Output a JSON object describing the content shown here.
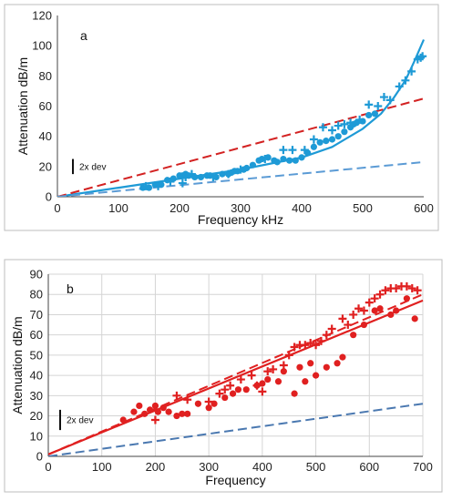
{
  "chart_data": [
    {
      "type": "scatter",
      "panel_label": "a",
      "xlabel": "Frequency  kHz",
      "ylabel": "Attenuation  dB/m",
      "xlim": [
        0,
        600
      ],
      "ylim": [
        0,
        120
      ],
      "x_ticks": [
        0,
        100,
        200,
        300,
        400,
        500,
        600
      ],
      "y_ticks": [
        0,
        20,
        40,
        60,
        80,
        100,
        120
      ],
      "grid": false,
      "dev_bar_label": "2x dev",
      "dev_bar_span": [
        15,
        25
      ],
      "series": [
        {
          "kind": "dots",
          "color": "#1E9AD6",
          "points": [
            [
              140,
              6
            ],
            [
              150,
              6
            ],
            [
              160,
              8
            ],
            [
              170,
              8
            ],
            [
              180,
              11
            ],
            [
              190,
              12
            ],
            [
              200,
              14
            ],
            [
              205,
              14
            ],
            [
              210,
              15
            ],
            [
              215,
              14
            ],
            [
              225,
              13
            ],
            [
              235,
              13
            ],
            [
              245,
              14
            ],
            [
              250,
              14
            ],
            [
              260,
              13
            ],
            [
              270,
              15
            ],
            [
              280,
              15
            ],
            [
              285,
              16
            ],
            [
              290,
              17
            ],
            [
              295,
              17
            ],
            [
              305,
              18
            ],
            [
              310,
              19
            ],
            [
              320,
              21
            ],
            [
              330,
              24
            ],
            [
              335,
              25
            ],
            [
              345,
              26
            ],
            [
              355,
              24
            ],
            [
              360,
              23
            ],
            [
              370,
              25
            ],
            [
              380,
              24
            ],
            [
              390,
              24
            ],
            [
              400,
              26
            ],
            [
              410,
              29
            ],
            [
              420,
              33
            ],
            [
              430,
              36
            ],
            [
              440,
              37
            ],
            [
              450,
              38
            ],
            [
              460,
              40
            ],
            [
              470,
              43
            ],
            [
              480,
              46
            ],
            [
              485,
              48
            ],
            [
              490,
              49
            ],
            [
              500,
              50
            ],
            [
              510,
              54
            ],
            [
              520,
              55
            ]
          ]
        },
        {
          "kind": "crosses",
          "color": "#1E9AD6",
          "points": [
            [
              145,
              7
            ],
            [
              165,
              7
            ],
            [
              185,
              10
            ],
            [
              205,
              9
            ],
            [
              210,
              13
            ],
            [
              220,
              15
            ],
            [
              255,
              13
            ],
            [
              280,
              15
            ],
            [
              300,
              18
            ],
            [
              340,
              25
            ],
            [
              370,
              31
            ],
            [
              385,
              31
            ],
            [
              405,
              31
            ],
            [
              420,
              38
            ],
            [
              435,
              46
            ],
            [
              450,
              44
            ],
            [
              460,
              47
            ],
            [
              470,
              48
            ],
            [
              480,
              49
            ],
            [
              495,
              51
            ],
            [
              510,
              61
            ],
            [
              525,
              60
            ],
            [
              535,
              66
            ],
            [
              545,
              64
            ],
            [
              560,
              73
            ],
            [
              570,
              77
            ],
            [
              580,
              83
            ],
            [
              590,
              91
            ],
            [
              595,
              92
            ],
            [
              598,
              93
            ]
          ]
        },
        {
          "kind": "line",
          "style": "solid",
          "color": "#1E9AD6",
          "points": [
            [
              0,
              0
            ],
            [
              100,
              6
            ],
            [
              200,
              12
            ],
            [
              300,
              18
            ],
            [
              350,
              22
            ],
            [
              400,
              26
            ],
            [
              450,
              33
            ],
            [
              500,
              45
            ],
            [
              530,
              55
            ],
            [
              550,
              65
            ],
            [
              570,
              77
            ],
            [
              585,
              90
            ],
            [
              600,
              104
            ]
          ]
        },
        {
          "kind": "line",
          "style": "dashed",
          "color": "#D32222",
          "points": [
            [
              0,
              0
            ],
            [
              600,
              65
            ]
          ]
        },
        {
          "kind": "line",
          "style": "dashed",
          "color": "#5B9BD5",
          "points": [
            [
              0,
              0
            ],
            [
              600,
              23
            ]
          ]
        }
      ]
    },
    {
      "type": "scatter",
      "panel_label": "b",
      "xlabel": "Frequency",
      "ylabel": "Attenuation  dB/m",
      "xlim": [
        0,
        700
      ],
      "ylim": [
        0,
        90
      ],
      "x_ticks": [
        0,
        100,
        200,
        300,
        400,
        500,
        600,
        700
      ],
      "y_ticks": [
        0,
        10,
        20,
        30,
        40,
        50,
        60,
        70,
        80,
        90
      ],
      "grid": true,
      "dev_bar_label": "2x dev",
      "dev_bar_span": [
        13,
        23
      ],
      "series": [
        {
          "kind": "dots",
          "color": "#E02020",
          "points": [
            [
              140,
              18
            ],
            [
              160,
              22
            ],
            [
              170,
              25
            ],
            [
              180,
              21
            ],
            [
              190,
              23
            ],
            [
              200,
              25
            ],
            [
              205,
              22
            ],
            [
              215,
              24
            ],
            [
              225,
              22
            ],
            [
              240,
              20
            ],
            [
              250,
              21
            ],
            [
              260,
              21
            ],
            [
              280,
              26
            ],
            [
              300,
              24
            ],
            [
              310,
              26
            ],
            [
              330,
              29
            ],
            [
              345,
              31
            ],
            [
              355,
              33
            ],
            [
              370,
              33
            ],
            [
              390,
              35
            ],
            [
              400,
              36
            ],
            [
              410,
              38
            ],
            [
              430,
              37
            ],
            [
              440,
              42
            ],
            [
              460,
              31
            ],
            [
              470,
              44
            ],
            [
              480,
              37
            ],
            [
              490,
              46
            ],
            [
              500,
              40
            ],
            [
              520,
              44
            ],
            [
              540,
              46
            ],
            [
              550,
              49
            ],
            [
              570,
              60
            ],
            [
              590,
              65
            ],
            [
              610,
              72
            ],
            [
              620,
              73
            ],
            [
              640,
              70
            ],
            [
              650,
              72
            ],
            [
              670,
              78
            ],
            [
              685,
              68
            ]
          ]
        },
        {
          "kind": "crosses",
          "color": "#E02020",
          "points": [
            [
              200,
              18
            ],
            [
              240,
              30
            ],
            [
              260,
              28
            ],
            [
              300,
              27
            ],
            [
              320,
              31
            ],
            [
              330,
              33
            ],
            [
              340,
              35
            ],
            [
              360,
              38
            ],
            [
              380,
              40
            ],
            [
              390,
              35
            ],
            [
              400,
              32
            ],
            [
              410,
              42
            ],
            [
              420,
              43
            ],
            [
              440,
              45
            ],
            [
              450,
              50
            ],
            [
              460,
              54
            ],
            [
              470,
              55
            ],
            [
              480,
              55
            ],
            [
              490,
              56
            ],
            [
              500,
              55
            ],
            [
              510,
              57
            ],
            [
              520,
              60
            ],
            [
              530,
              63
            ],
            [
              550,
              68
            ],
            [
              560,
              65
            ],
            [
              570,
              70
            ],
            [
              580,
              73
            ],
            [
              590,
              72
            ],
            [
              600,
              76
            ],
            [
              610,
              78
            ],
            [
              620,
              80
            ],
            [
              630,
              82
            ],
            [
              640,
              83
            ],
            [
              650,
              83
            ],
            [
              660,
              84
            ],
            [
              670,
              84
            ],
            [
              680,
              83
            ],
            [
              690,
              82
            ]
          ]
        },
        {
          "kind": "line",
          "style": "solid",
          "color": "#E02020",
          "points": [
            [
              0,
              1
            ],
            [
              700,
              77
            ]
          ]
        },
        {
          "kind": "line",
          "style": "dashed",
          "color": "#E02020",
          "points": [
            [
              0,
              1
            ],
            [
              700,
              80
            ]
          ]
        },
        {
          "kind": "line",
          "style": "dashed",
          "color": "#4A78B0",
          "points": [
            [
              0,
              0
            ],
            [
              700,
              26
            ]
          ]
        }
      ]
    }
  ]
}
